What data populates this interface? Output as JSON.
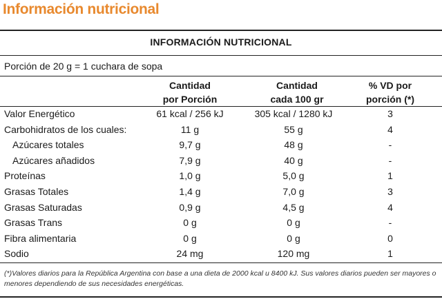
{
  "page_title": "Información nutricional",
  "table": {
    "title": "INFORMACIÓN NUTRICIONAL",
    "portion": "Porción de 20 g = 1 cuchara de sopa",
    "headers": {
      "per_portion": [
        "Cantidad",
        "por Porción"
      ],
      "per_100g": [
        "Cantidad",
        "cada 100 gr"
      ],
      "vd": [
        "% VD por",
        "porción (*)"
      ]
    },
    "rows": [
      {
        "name": "Valor Energético",
        "portion": "61 kcal / 256 kJ",
        "per100": "305 kcal / 1280 kJ",
        "vd": "3",
        "indent": false
      },
      {
        "name": "Carbohidratos de los cuales:",
        "portion": "11 g",
        "per100": "55 g",
        "vd": "4",
        "indent": false
      },
      {
        "name": "Azúcares totales",
        "portion": "9,7 g",
        "per100": "48 g",
        "vd": "-",
        "indent": true
      },
      {
        "name": "Azúcares añadidos",
        "portion": "7,9 g",
        "per100": "40 g",
        "vd": "-",
        "indent": true
      },
      {
        "name": "Proteínas",
        "portion": "1,0 g",
        "per100": "5,0 g",
        "vd": "1",
        "indent": false
      },
      {
        "name": "Grasas Totales",
        "portion": "1,4 g",
        "per100": "7,0 g",
        "vd": "3",
        "indent": false
      },
      {
        "name": "Grasas Saturadas",
        "portion": "0,9 g",
        "per100": "4,5 g",
        "vd": "4",
        "indent": false
      },
      {
        "name": "Grasas Trans",
        "portion": "0 g",
        "per100": "0 g",
        "vd": "-",
        "indent": false
      },
      {
        "name": "Fibra alimentaria",
        "portion": "0 g",
        "per100": "0 g",
        "vd": "0",
        "indent": false
      },
      {
        "name": "Sodio",
        "portion": "24 mg",
        "per100": "120 mg",
        "vd": "1",
        "indent": false
      }
    ],
    "footnote": "(*)Valores diarios para la República Argentina con base a una dieta de 2000 kcal u 8400 kJ. Sus valores diarios pueden ser mayores o menores dependiendo de sus necesidades energéticas."
  },
  "colors": {
    "title": "#e8892e",
    "rules": "#222222"
  }
}
